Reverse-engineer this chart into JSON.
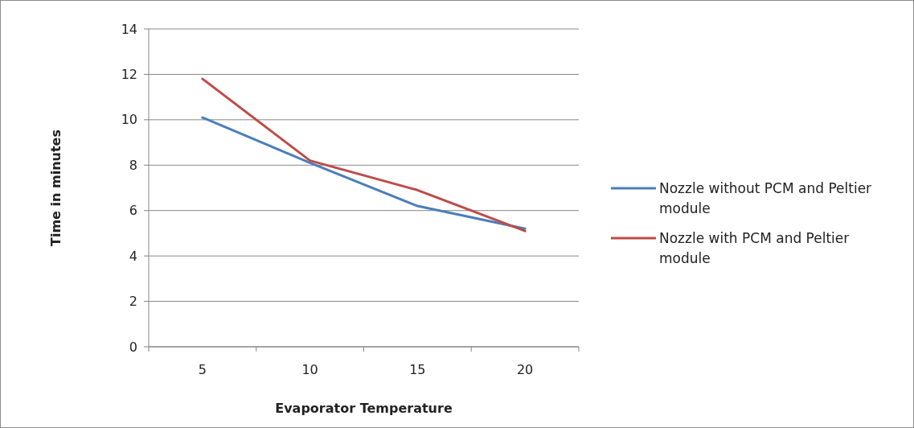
{
  "chart_data": {
    "type": "line",
    "xlabel": "Evaporator Temperature",
    "ylabel": "Time in minutes",
    "categories": [
      "5",
      "10",
      "15",
      "20"
    ],
    "series": [
      {
        "name": "Nozzle without PCM and Peltier module",
        "color": "#4a7ebb",
        "values": [
          10.1,
          8.1,
          6.2,
          5.2
        ]
      },
      {
        "name": "Nozzle with PCM and Peltier module",
        "color": "#be4b48",
        "values": [
          11.8,
          8.2,
          6.9,
          5.1
        ]
      }
    ],
    "ylim": [
      0,
      14
    ],
    "yticks": [
      0,
      2,
      4,
      6,
      8,
      10,
      12,
      14
    ],
    "grid": "y",
    "legend": "right",
    "marker": "none",
    "line_style": "solid"
  }
}
